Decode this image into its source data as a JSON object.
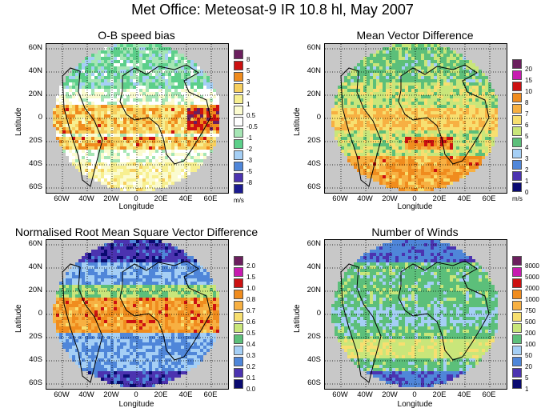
{
  "title": "Met Office: Meteosat-9 IR 10.8 hl, May 2007",
  "chart_data": [
    {
      "type": "heatmap",
      "title": "O-B speed bias",
      "xlabel": "Longitude",
      "ylabel": "Latitude",
      "xticks": [
        "60W",
        "40W",
        "20W",
        "0",
        "20E",
        "40E",
        "60E"
      ],
      "yticks": [
        "60N",
        "40N",
        "20N",
        "0",
        "20S",
        "40S",
        "60S"
      ],
      "legend_labels": [
        "8",
        "5",
        "3",
        "2",
        "1",
        "0.5",
        "-0.5",
        "-1",
        "-2",
        "-3",
        "-5",
        "-8"
      ],
      "legend_colors": [
        "#6b1f5e",
        "#cc1111",
        "#f08c1e",
        "#f7cf5e",
        "#f7ef90",
        "#fbfbcf",
        "#ffffff",
        "#a6e6b5",
        "#5ccf8a",
        "#a5cff5",
        "#4f86d9",
        "#4b33b0",
        "#1b1b90"
      ],
      "unit": "m/s"
    },
    {
      "type": "heatmap",
      "title": "Mean Vector Difference",
      "xlabel": "Longitude",
      "ylabel": "Latitude",
      "xticks": [
        "60W",
        "40W",
        "20W",
        "0",
        "20E",
        "40E",
        "60E"
      ],
      "yticks": [
        "60N",
        "40N",
        "20N",
        "0",
        "20S",
        "40S",
        "60S"
      ],
      "legend_labels": [
        "20",
        "15",
        "10",
        "8",
        "7",
        "6",
        "5",
        "4",
        "3",
        "2",
        "1",
        "0"
      ],
      "legend_colors": [
        "#6b1f5e",
        "#c71bb0",
        "#cc1111",
        "#f08c1e",
        "#f7b042",
        "#f7df70",
        "#c9e67a",
        "#5cbf7a",
        "#a5cff5",
        "#4f86d9",
        "#4b33b0",
        "#0a0a70"
      ],
      "unit": "m/s"
    },
    {
      "type": "heatmap",
      "title": "Normalised Root Mean Square Vector Difference",
      "xlabel": "Longitude",
      "ylabel": "Latitude",
      "xticks": [
        "60W",
        "40W",
        "20W",
        "0",
        "20E",
        "40E",
        "60E"
      ],
      "yticks": [
        "60N",
        "40N",
        "20N",
        "0",
        "20S",
        "40S",
        "60S"
      ],
      "legend_labels": [
        "2.0",
        "1.5",
        "1.0",
        "0.8",
        "0.7",
        "0.6",
        "0.5",
        "0.4",
        "0.3",
        "0.2",
        "0.1",
        "0.0"
      ],
      "legend_colors": [
        "#6b1f5e",
        "#c71bb0",
        "#cc1111",
        "#f08c1e",
        "#f7b042",
        "#f7df70",
        "#c9e67a",
        "#5cbf7a",
        "#a5cff5",
        "#4f86d9",
        "#4b33b0",
        "#0a0a70"
      ],
      "unit": ""
    },
    {
      "type": "heatmap",
      "title": "Number of Winds",
      "xlabel": "Longitude",
      "ylabel": "Latitude",
      "xticks": [
        "60W",
        "40W",
        "20W",
        "0",
        "20E",
        "40E",
        "60E"
      ],
      "yticks": [
        "60N",
        "40N",
        "20N",
        "0",
        "20S",
        "40S",
        "60S"
      ],
      "legend_labels": [
        "8000",
        "5000",
        "2000",
        "1000",
        "750",
        "500",
        "200",
        "100",
        "50",
        "20",
        "5",
        "1"
      ],
      "legend_colors": [
        "#6b1f5e",
        "#c71bb0",
        "#cc1111",
        "#f08c1e",
        "#f7b042",
        "#f7df70",
        "#c9e67a",
        "#5cbf7a",
        "#a5cff5",
        "#4f86d9",
        "#4b33b0",
        "#0a0a70"
      ],
      "unit": ""
    }
  ]
}
